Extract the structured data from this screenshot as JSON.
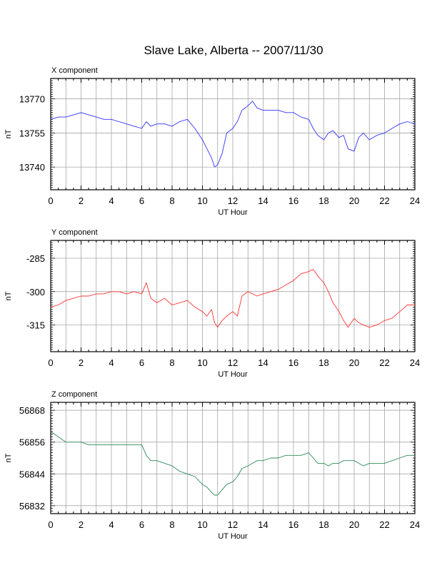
{
  "chart_data": {
    "title": "Slave Lake, Alberta -- 2007/11/30",
    "panels": [
      {
        "type": "line",
        "name": "X component",
        "color": "#3333ff",
        "xlabel": "UT Hour",
        "ylabel": "nT",
        "xlim": [
          0,
          24
        ],
        "ylim": [
          13730,
          13779
        ],
        "xticks": [
          "0",
          "2",
          "4",
          "6",
          "8",
          "10",
          "12",
          "14",
          "16",
          "18",
          "20",
          "22",
          "24"
        ],
        "yticks": [
          13740,
          13755,
          13770
        ],
        "series": [
          {
            "x": [
              0,
              0.5,
              1,
              1.5,
              2,
              2.5,
              3,
              3.5,
              4,
              4.5,
              5,
              5.5,
              6,
              6.3,
              6.6,
              7,
              7.5,
              8,
              8.5,
              9,
              9.5,
              10,
              10.3,
              10.6,
              10.8,
              11,
              11.3,
              11.6,
              12,
              12.3,
              12.6,
              13,
              13.3,
              13.6,
              14,
              14.5,
              15,
              15.5,
              16,
              16.5,
              17,
              17.3,
              17.6,
              18,
              18.3,
              18.6,
              19,
              19.3,
              19.6,
              20,
              20.3,
              20.6,
              21,
              21.5,
              22,
              22.5,
              23,
              23.5,
              24
            ],
            "y": [
              13761,
              13762,
              13762,
              13763,
              13764,
              13763,
              13762,
              13761,
              13761,
              13760,
              13759,
              13758,
              13757,
              13760,
              13758,
              13759,
              13759,
              13758,
              13760,
              13761,
              13757,
              13752,
              13748,
              13744,
              13740,
              13741,
              13746,
              13755,
              13757,
              13760,
              13765,
              13767,
              13769,
              13766,
              13765,
              13765,
              13765,
              13764,
              13764,
              13762,
              13761,
              13757,
              13754,
              13752,
              13755,
              13756,
              13753,
              13754,
              13748,
              13747,
              13753,
              13755,
              13752,
              13754,
              13755,
              13757,
              13759,
              13760,
              13759
            ]
          }
        ]
      },
      {
        "type": "line",
        "name": "Y component",
        "color": "#ff3333",
        "xlabel": "UT Hour",
        "ylabel": "nT",
        "xlim": [
          0,
          24
        ],
        "ylim": [
          -327,
          -277
        ],
        "xticks": [
          "0",
          "2",
          "4",
          "6",
          "8",
          "10",
          "12",
          "14",
          "16",
          "18",
          "20",
          "22",
          "24"
        ],
        "yticks": [
          -285,
          -300,
          -315
        ],
        "series": [
          {
            "x": [
              0,
              0.5,
              1,
              1.5,
              2,
              2.5,
              3,
              3.5,
              4,
              4.5,
              5,
              5.5,
              6,
              6.3,
              6.6,
              7,
              7.5,
              8,
              8.5,
              9,
              9.5,
              10,
              10.3,
              10.6,
              10.8,
              11,
              11.3,
              11.6,
              12,
              12.3,
              12.6,
              13,
              13.3,
              13.6,
              14,
              14.5,
              15,
              15.5,
              16,
              16.5,
              17,
              17.3,
              17.6,
              18,
              18.3,
              18.6,
              19,
              19.3,
              19.6,
              20,
              20.3,
              20.6,
              21,
              21.5,
              22,
              22.5,
              23,
              23.5,
              24
            ],
            "y": [
              -307,
              -306,
              -304,
              -303,
              -302,
              -302,
              -301,
              -301,
              -300,
              -300,
              -301,
              -300,
              -301,
              -296,
              -303,
              -305,
              -303,
              -306,
              -305,
              -304,
              -307,
              -309,
              -311,
              -308,
              -314,
              -316,
              -313,
              -311,
              -309,
              -311,
              -302,
              -300,
              -301,
              -302,
              -301,
              -300,
              -299,
              -297,
              -295,
              -292,
              -291,
              -290,
              -293,
              -296,
              -300,
              -305,
              -309,
              -313,
              -316,
              -312,
              -314,
              -315,
              -316,
              -315,
              -313,
              -312,
              -309,
              -306,
              -306
            ]
          }
        ]
      },
      {
        "type": "line",
        "name": "Z component",
        "color": "#2e8b57",
        "xlabel": "UT Hour",
        "ylabel": "nT",
        "xlim": [
          0,
          24
        ],
        "ylim": [
          56829,
          56871
        ],
        "xticks": [
          "0",
          "2",
          "4",
          "6",
          "8",
          "10",
          "12",
          "14",
          "16",
          "18",
          "20",
          "22",
          "24"
        ],
        "yticks": [
          56868,
          56856,
          56844,
          56832
        ],
        "series": [
          {
            "x": [
              0,
              0.5,
              1,
              1.5,
              2,
              2.5,
              3,
              3.5,
              4,
              4.5,
              5,
              5.5,
              6,
              6.3,
              6.6,
              7,
              7.5,
              8,
              8.5,
              9,
              9.5,
              10,
              10.3,
              10.6,
              10.8,
              11,
              11.3,
              11.6,
              12,
              12.3,
              12.6,
              13,
              13.3,
              13.6,
              14,
              14.5,
              15,
              15.5,
              16,
              16.5,
              17,
              17.3,
              17.6,
              18,
              18.3,
              18.6,
              19,
              19.3,
              19.6,
              20,
              20.3,
              20.6,
              21,
              21.5,
              22,
              22.5,
              23,
              23.5,
              24
            ],
            "y": [
              56860,
              56858,
              56856,
              56856,
              56856,
              56855,
              56855,
              56855,
              56855,
              56855,
              56855,
              56855,
              56855,
              56851,
              56849,
              56849,
              56848,
              56847,
              56845,
              56844,
              56843,
              56840,
              56839,
              56837,
              56836,
              56836,
              56838,
              56840,
              56841,
              56843,
              56846,
              56847,
              56848,
              56849,
              56849,
              56850,
              56850,
              56851,
              56851,
              56851,
              56852,
              56850,
              56848,
              56848,
              56847,
              56848,
              56848,
              56849,
              56849,
              56849,
              56848,
              56847,
              56848,
              56848,
              56848,
              56849,
              56850,
              56851,
              56851
            ]
          }
        ]
      }
    ]
  }
}
